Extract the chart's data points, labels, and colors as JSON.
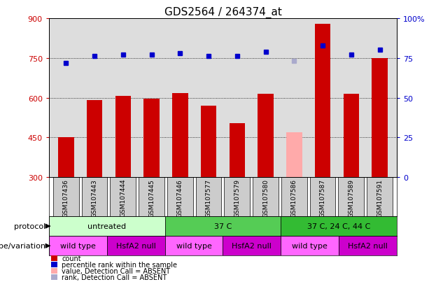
{
  "title": "GDS2564 / 264374_at",
  "samples": [
    "GSM107436",
    "GSM107443",
    "GSM107444",
    "GSM107445",
    "GSM107446",
    "GSM107577",
    "GSM107579",
    "GSM107580",
    "GSM107586",
    "GSM107587",
    "GSM107589",
    "GSM107591"
  ],
  "count_values": [
    452,
    590,
    608,
    597,
    617,
    571,
    503,
    614,
    470,
    878,
    614,
    748
  ],
  "rank_values": [
    72,
    76,
    77,
    77,
    78,
    76,
    76,
    79,
    73,
    83,
    77,
    80
  ],
  "count_absent": [
    false,
    false,
    false,
    false,
    false,
    false,
    false,
    false,
    true,
    false,
    false,
    false
  ],
  "rank_absent": [
    false,
    false,
    false,
    false,
    false,
    false,
    false,
    false,
    true,
    false,
    false,
    false
  ],
  "ylim_left": [
    300,
    900
  ],
  "ylim_right": [
    0,
    100
  ],
  "yticks_left": [
    300,
    450,
    600,
    750,
    900
  ],
  "yticks_right": [
    0,
    25,
    50,
    75,
    100
  ],
  "bar_color": "#cc0000",
  "bar_absent_color": "#ffaaaa",
  "dot_color": "#0000cc",
  "dot_absent_color": "#aaaacc",
  "protocol_groups": [
    {
      "label": "untreated",
      "start": 0,
      "end": 4,
      "color": "#ccffcc"
    },
    {
      "label": "37 C",
      "start": 4,
      "end": 8,
      "color": "#55cc55"
    },
    {
      "label": "37 C, 24 C, 44 C",
      "start": 8,
      "end": 12,
      "color": "#33bb33"
    }
  ],
  "genotype_groups": [
    {
      "label": "wild type",
      "start": 0,
      "end": 2,
      "color": "#ff66ff"
    },
    {
      "label": "HsfA2 null",
      "start": 2,
      "end": 4,
      "color": "#cc00cc"
    },
    {
      "label": "wild type",
      "start": 4,
      "end": 6,
      "color": "#ff66ff"
    },
    {
      "label": "HsfA2 null",
      "start": 6,
      "end": 8,
      "color": "#cc00cc"
    },
    {
      "label": "wild type",
      "start": 8,
      "end": 10,
      "color": "#ff66ff"
    },
    {
      "label": "HsfA2 null",
      "start": 10,
      "end": 12,
      "color": "#cc00cc"
    }
  ],
  "protocol_label": "protocol",
  "genotype_label": "genotype/variation",
  "legend_items": [
    {
      "label": "count",
      "color": "#cc0000"
    },
    {
      "label": "percentile rank within the sample",
      "color": "#0000cc"
    },
    {
      "label": "value, Detection Call = ABSENT",
      "color": "#ffaaaa"
    },
    {
      "label": "rank, Detection Call = ABSENT",
      "color": "#aaaacc"
    }
  ],
  "bg_color": "#ffffff",
  "plot_bg_color": "#dddddd",
  "sample_bg_color": "#cccccc",
  "title_fontsize": 11
}
